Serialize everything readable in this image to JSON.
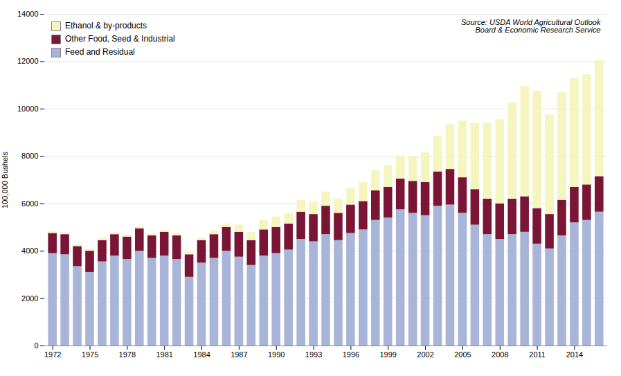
{
  "chart_data": {
    "type": "bar",
    "stacked": true,
    "categories": [
      "1972",
      null,
      null,
      "1975",
      null,
      null,
      "1978",
      null,
      null,
      "1981",
      null,
      null,
      "1984",
      null,
      null,
      "1987",
      null,
      null,
      "1990",
      null,
      null,
      "1993",
      null,
      null,
      "1996",
      null,
      null,
      "1999",
      null,
      null,
      "2002",
      null,
      null,
      "2005",
      null,
      null,
      "2008",
      null,
      null,
      "2011",
      null,
      null,
      "2014",
      null,
      null
    ],
    "series": [
      {
        "name": "Feed and Residual",
        "color": "#a8b4d8",
        "values": [
          3900,
          3850,
          3350,
          3100,
          3550,
          3800,
          3650,
          4000,
          3700,
          3800,
          3650,
          2900,
          3500,
          3700,
          4000,
          3750,
          3400,
          3800,
          3900,
          4050,
          4500,
          4400,
          4700,
          4450,
          4750,
          4900,
          5300,
          5400,
          5750,
          5600,
          5500,
          5900,
          5950,
          5600,
          5100,
          4700,
          4500,
          4700,
          4800,
          4300,
          4100,
          4650,
          5200,
          5300,
          5650
        ]
      },
      {
        "name": "Other Food, Seed & Industrial",
        "color": "#7b1535",
        "values": [
          850,
          850,
          850,
          900,
          900,
          900,
          950,
          950,
          950,
          1000,
          1000,
          950,
          950,
          1000,
          1000,
          1050,
          1050,
          1100,
          1100,
          1100,
          1150,
          1150,
          1200,
          1150,
          1200,
          1200,
          1250,
          1300,
          1300,
          1350,
          1400,
          1450,
          1500,
          1500,
          1500,
          1500,
          1500,
          1500,
          1500,
          1500,
          1450,
          1500,
          1500,
          1500,
          1500
        ]
      },
      {
        "name": "Ethanol & by-products",
        "color": "#f5f5c0",
        "values": [
          80,
          80,
          80,
          80,
          80,
          80,
          80,
          80,
          80,
          80,
          100,
          100,
          100,
          150,
          150,
          300,
          350,
          400,
          450,
          450,
          500,
          550,
          600,
          600,
          700,
          800,
          850,
          900,
          950,
          1050,
          1250,
          1500,
          1900,
          2400,
          2800,
          3200,
          3550,
          4050,
          4650,
          4950,
          4200,
          4550,
          4600,
          4650,
          4900
        ]
      }
    ],
    "ylabel": "100,000 Bushels",
    "ylim": [
      0,
      14000
    ],
    "yticks": [
      0,
      2000,
      4000,
      6000,
      8000,
      10000,
      12000,
      14000
    ],
    "grid": true,
    "legend": "upper left",
    "annotations": [
      "Source: USDA World Agricultural Outlook\nBoard & Economic Research Service"
    ]
  }
}
